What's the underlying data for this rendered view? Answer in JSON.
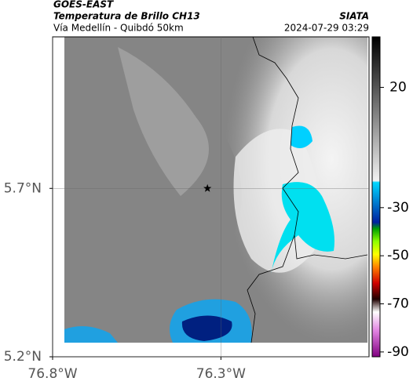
{
  "header": {
    "title": "GOES-EAST",
    "subtitle": "Temperatura de Brillo CH13",
    "region": "Vía Medellín - Quibdó 50km",
    "source": "SIATA",
    "timestamp": "2024-07-29 03:29"
  },
  "map": {
    "xlim": [
      -76.8,
      -75.86
    ],
    "ylim": [
      5.2,
      6.15
    ],
    "xticks": [
      {
        "value": -76.8,
        "label": "76.8°W"
      },
      {
        "value": -76.3,
        "label": "76.3°W"
      }
    ],
    "yticks": [
      {
        "value": 5.7,
        "label": "5.7°N"
      },
      {
        "value": 5.2,
        "label": "5.2°N"
      }
    ],
    "grid": true,
    "marker": {
      "lon": -76.34,
      "lat": 5.7
    }
  },
  "colorbar": {
    "clim": [
      41,
      -92
    ],
    "ticks": [
      20,
      -30,
      -50,
      -70,
      -90
    ]
  }
}
